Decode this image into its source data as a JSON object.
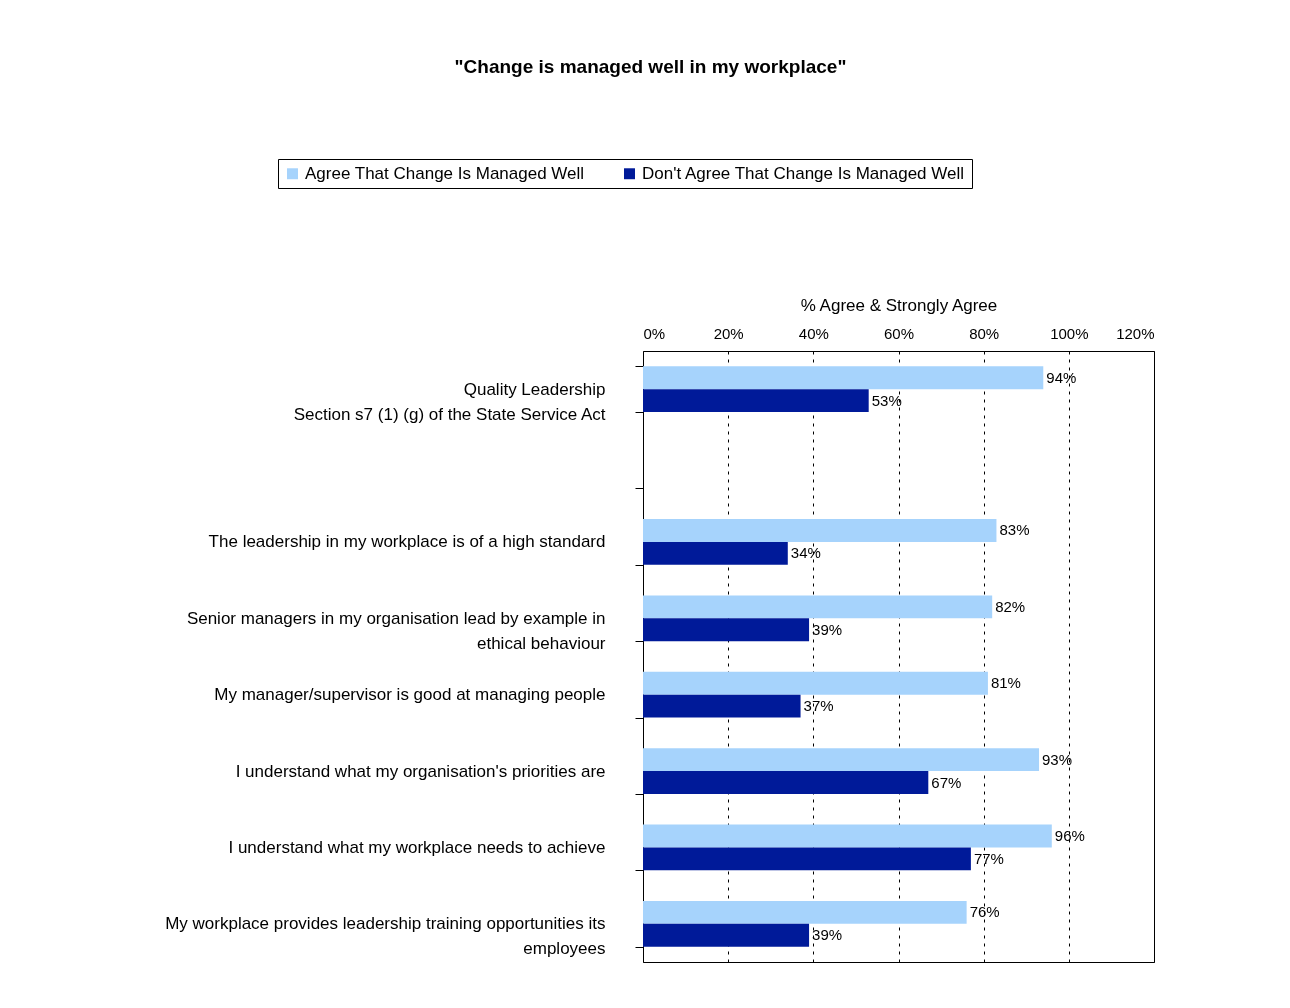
{
  "chart_data": {
    "type": "bar",
    "orientation": "horizontal",
    "title": "\"Change is managed well in my workplace\"",
    "xlabel": "% Agree & Strongly Agree",
    "categories": [
      "Quality Leadership\nSection s7 (1) (g) of the State Service Act",
      null,
      "The leadership in my workplace is of a high standard",
      "Senior managers in my organisation lead by example in ethical behaviour",
      "My manager/supervisor is good at managing people",
      "I understand what my organisation's priorities are",
      "I understand what my workplace needs to achieve",
      "My workplace provides leadership training opportunities its employees"
    ],
    "series": [
      {
        "name": "Agree That Change Is Managed Well",
        "color": "#a6d3fc",
        "values": [
          94,
          null,
          83,
          82,
          81,
          93,
          96,
          76
        ],
        "value_labels": [
          "94%",
          null,
          "83%",
          "82%",
          "81%",
          "93%",
          "96%",
          "76%"
        ]
      },
      {
        "name": "Don't Agree That Change Is Managed Well",
        "color": "#001a99",
        "values": [
          53,
          null,
          34,
          39,
          37,
          67,
          77,
          39
        ],
        "value_labels": [
          "53%",
          null,
          "34%",
          "39%",
          "37%",
          "67%",
          "77%",
          "39%"
        ]
      }
    ],
    "xlim": [
      0,
      120
    ],
    "xticks": [
      {
        "value": 0,
        "label": "0%"
      },
      {
        "value": 20,
        "label": "20%"
      },
      {
        "value": 40,
        "label": "40%"
      },
      {
        "value": 60,
        "label": "60%"
      },
      {
        "value": 80,
        "label": "80%"
      },
      {
        "value": 100,
        "label": "100%"
      },
      {
        "value": 120,
        "label": "120%"
      }
    ],
    "grid": "x",
    "legend": "top"
  }
}
